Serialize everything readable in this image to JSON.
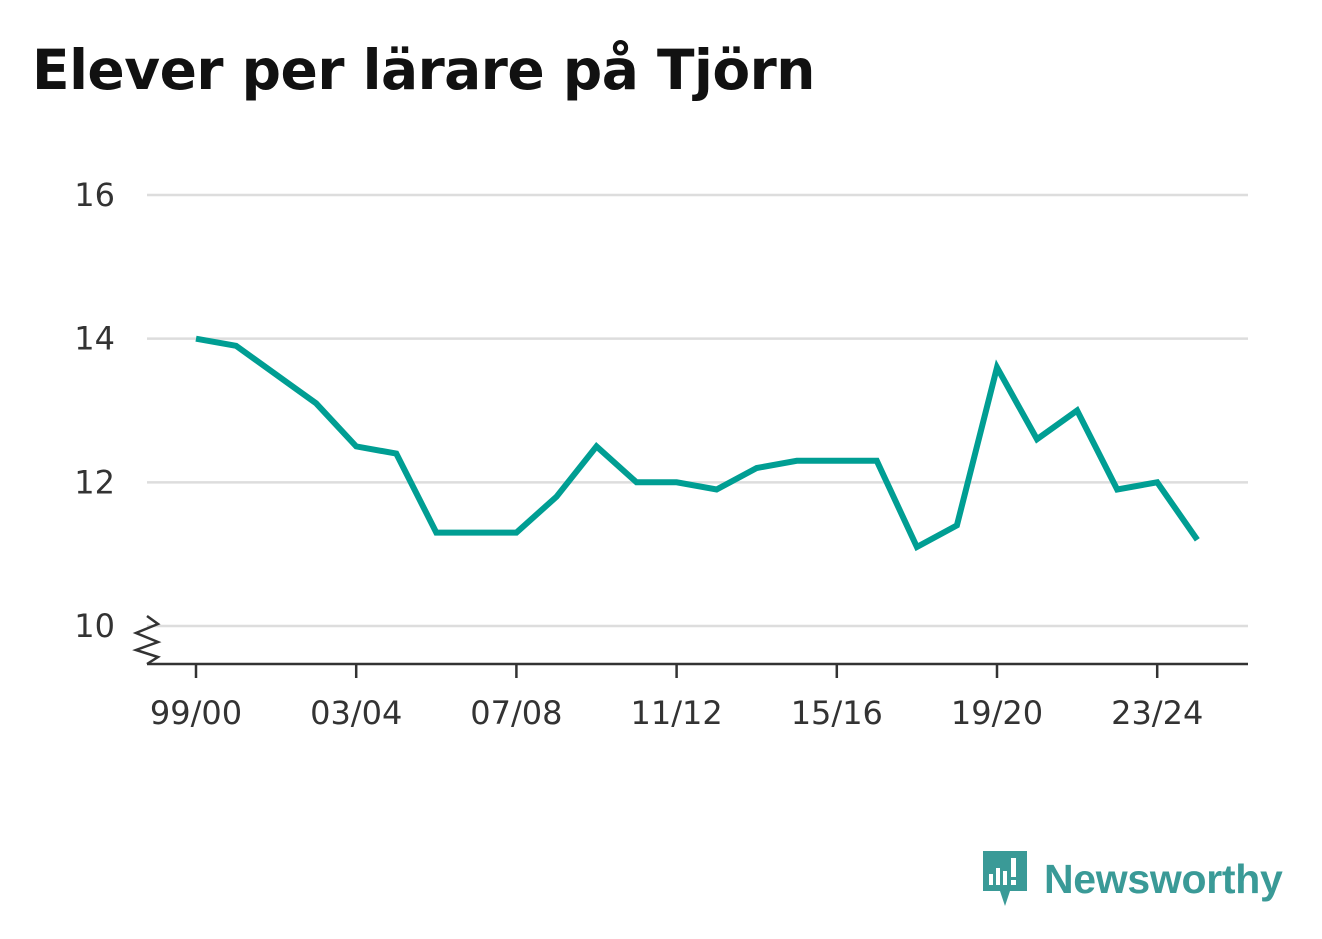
{
  "title": "Elever per lärare på Tjörn",
  "brand": {
    "name": "Newsworthy",
    "icon": "newsworthy-logo-icon"
  },
  "colors": {
    "line": "#009e93",
    "grid": "#dddddd",
    "axis": "#333333",
    "brand": "#3a9a97"
  },
  "chart_data": {
    "type": "line",
    "title": "Elever per lärare på Tjörn",
    "xlabel": "",
    "ylabel": "",
    "ylim": [
      10,
      16
    ],
    "y_ticks": [
      10,
      12,
      14,
      16
    ],
    "x_tick_labels": [
      "99/00",
      "03/04",
      "07/08",
      "11/12",
      "15/16",
      "19/20",
      "23/24"
    ],
    "y_axis_break": true,
    "grid": true,
    "categories": [
      "99/00",
      "00/01",
      "01/02",
      "02/03",
      "03/04",
      "04/05",
      "05/06",
      "06/07",
      "07/08",
      "08/09",
      "09/10",
      "10/11",
      "11/12",
      "12/13",
      "13/14",
      "14/15",
      "15/16",
      "16/17",
      "17/18",
      "18/19",
      "19/20",
      "20/21",
      "21/22",
      "22/23",
      "23/24",
      "24/25"
    ],
    "series": [
      {
        "values": [
          14.0,
          13.9,
          13.5,
          13.1,
          12.5,
          12.4,
          11.3,
          11.3,
          11.3,
          11.8,
          12.5,
          12.0,
          12.0,
          11.9,
          12.2,
          12.3,
          12.3,
          12.3,
          11.1,
          11.4,
          13.6,
          12.6,
          13.0,
          11.9,
          12.0,
          11.2
        ]
      }
    ]
  }
}
